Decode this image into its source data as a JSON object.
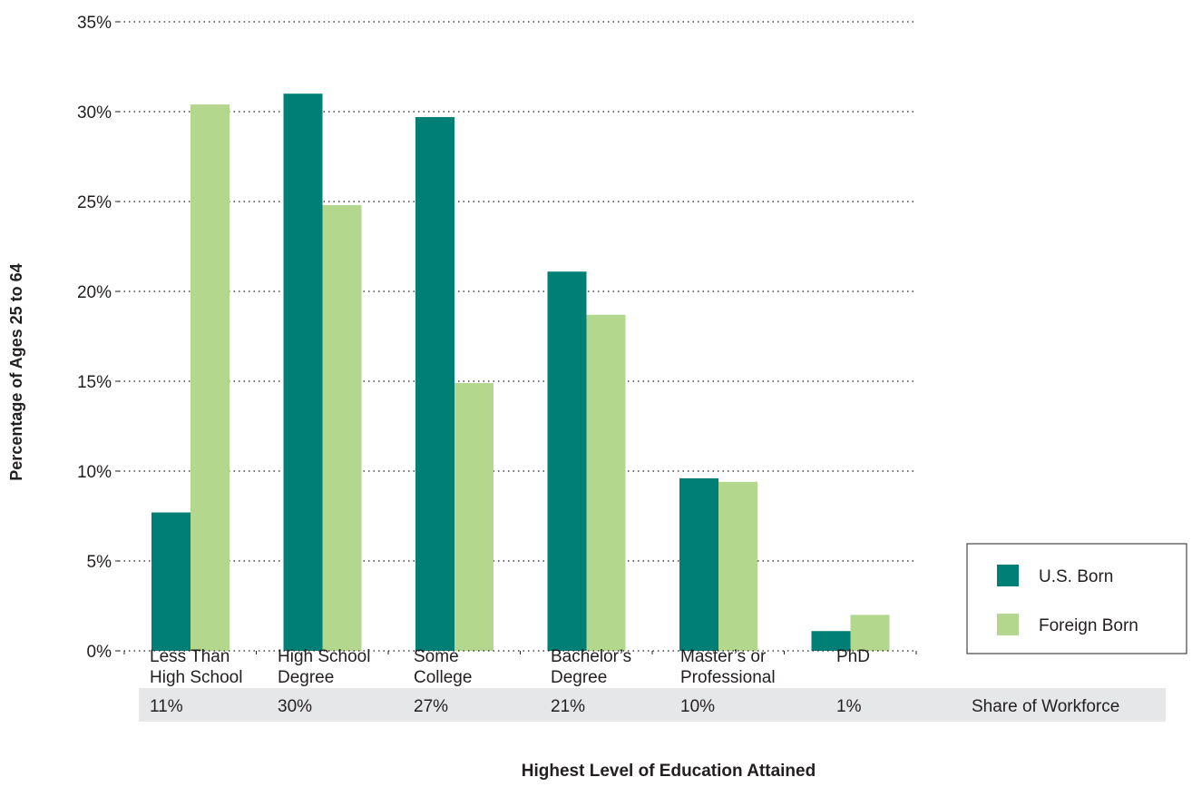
{
  "colors": {
    "us_born": "#007f76",
    "foreign_born": "#b2d78d",
    "grid": "#231f20",
    "share_band": "#e6e7e8"
  },
  "chart_data": {
    "type": "bar",
    "ylabel": "Percentage of Ages 25 to 64",
    "xlabel": "Highest Level of Education Attained",
    "ylim": [
      0,
      35
    ],
    "yticks": [
      0,
      5,
      10,
      15,
      20,
      25,
      30,
      35
    ],
    "ytick_labels": [
      "0%",
      "5%",
      "10%",
      "15%",
      "20%",
      "25%",
      "30%",
      "35%"
    ],
    "grid": true,
    "legend_position": "bottom-right",
    "categories": [
      [
        "Less Than",
        "High School"
      ],
      [
        "High School",
        "Degree"
      ],
      [
        "Some",
        "College"
      ],
      [
        "Bachelor’s",
        "Degree"
      ],
      [
        "Master’s or",
        "Professional"
      ],
      [
        "PhD"
      ]
    ],
    "series": [
      {
        "name": "U.S. Born",
        "values": [
          7.7,
          31.0,
          29.7,
          21.1,
          9.6,
          1.1
        ]
      },
      {
        "name": "Foreign Born",
        "values": [
          30.4,
          24.8,
          14.9,
          18.7,
          9.4,
          2.0
        ]
      }
    ],
    "share_of_workforce": {
      "label": "Share of Workforce",
      "values": [
        "11%",
        "30%",
        "27%",
        "21%",
        "10%",
        "1%"
      ]
    }
  }
}
